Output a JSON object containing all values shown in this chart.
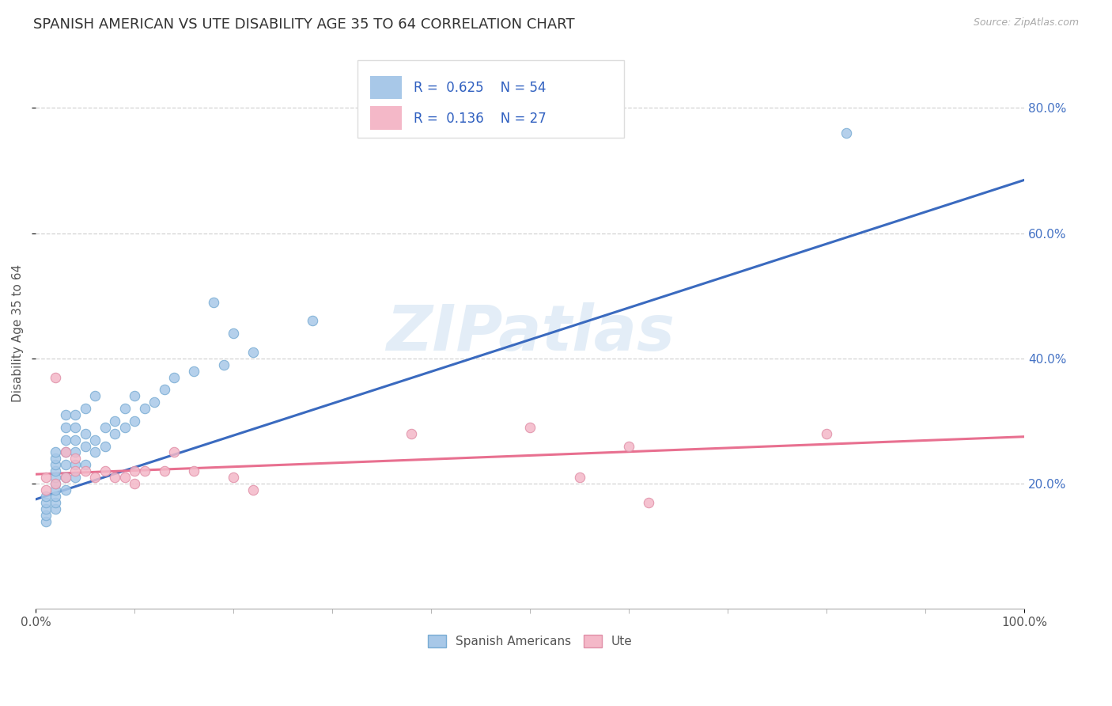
{
  "title": "SPANISH AMERICAN VS UTE DISABILITY AGE 35 TO 64 CORRELATION CHART",
  "source": "Source: ZipAtlas.com",
  "ylabel": "Disability Age 35 to 64",
  "xlim": [
    0.0,
    1.0
  ],
  "ylim": [
    0.0,
    0.88
  ],
  "ytick_labels": [
    "20.0%",
    "40.0%",
    "60.0%",
    "80.0%"
  ],
  "ytick_values": [
    0.2,
    0.4,
    0.6,
    0.8
  ],
  "xtick_labels": [
    "0.0%",
    "100.0%"
  ],
  "xtick_values": [
    0.0,
    1.0
  ],
  "color_blue": "#a8c8e8",
  "color_pink": "#f4b8c8",
  "line_blue": "#3a6abf",
  "line_pink": "#e87090",
  "watermark": "ZIPatlas",
  "blue_x": [
    0.01,
    0.01,
    0.01,
    0.01,
    0.01,
    0.02,
    0.02,
    0.02,
    0.02,
    0.02,
    0.02,
    0.02,
    0.02,
    0.02,
    0.02,
    0.03,
    0.03,
    0.03,
    0.03,
    0.03,
    0.03,
    0.03,
    0.04,
    0.04,
    0.04,
    0.04,
    0.04,
    0.04,
    0.05,
    0.05,
    0.05,
    0.05,
    0.06,
    0.06,
    0.06,
    0.07,
    0.07,
    0.08,
    0.08,
    0.09,
    0.09,
    0.1,
    0.1,
    0.11,
    0.12,
    0.13,
    0.14,
    0.16,
    0.19,
    0.22,
    0.28,
    0.82,
    0.2,
    0.18
  ],
  "blue_y": [
    0.14,
    0.15,
    0.16,
    0.17,
    0.18,
    0.16,
    0.17,
    0.18,
    0.19,
    0.2,
    0.21,
    0.22,
    0.23,
    0.24,
    0.25,
    0.19,
    0.21,
    0.23,
    0.25,
    0.27,
    0.29,
    0.31,
    0.21,
    0.23,
    0.25,
    0.27,
    0.29,
    0.31,
    0.23,
    0.26,
    0.28,
    0.32,
    0.25,
    0.27,
    0.34,
    0.26,
    0.29,
    0.28,
    0.3,
    0.29,
    0.32,
    0.3,
    0.34,
    0.32,
    0.33,
    0.35,
    0.37,
    0.38,
    0.39,
    0.41,
    0.46,
    0.76,
    0.44,
    0.49
  ],
  "pink_x": [
    0.01,
    0.01,
    0.02,
    0.02,
    0.03,
    0.03,
    0.04,
    0.04,
    0.05,
    0.06,
    0.07,
    0.08,
    0.09,
    0.1,
    0.1,
    0.11,
    0.13,
    0.16,
    0.2,
    0.22,
    0.38,
    0.5,
    0.55,
    0.6,
    0.62,
    0.8,
    0.14
  ],
  "pink_y": [
    0.19,
    0.21,
    0.2,
    0.37,
    0.21,
    0.25,
    0.22,
    0.24,
    0.22,
    0.21,
    0.22,
    0.21,
    0.21,
    0.2,
    0.22,
    0.22,
    0.22,
    0.22,
    0.21,
    0.19,
    0.28,
    0.29,
    0.21,
    0.26,
    0.17,
    0.28,
    0.25
  ],
  "blue_line_x": [
    0.0,
    1.0
  ],
  "blue_line_y": [
    0.175,
    0.685
  ],
  "pink_line_x": [
    0.0,
    1.0
  ],
  "pink_line_y": [
    0.215,
    0.275
  ],
  "background_color": "#ffffff",
  "grid_color": "#c8c8c8",
  "title_fontsize": 13,
  "axis_label_fontsize": 11,
  "tick_fontsize": 11,
  "right_tick_color": "#4472c4",
  "legend_text_color": "#3060c0"
}
